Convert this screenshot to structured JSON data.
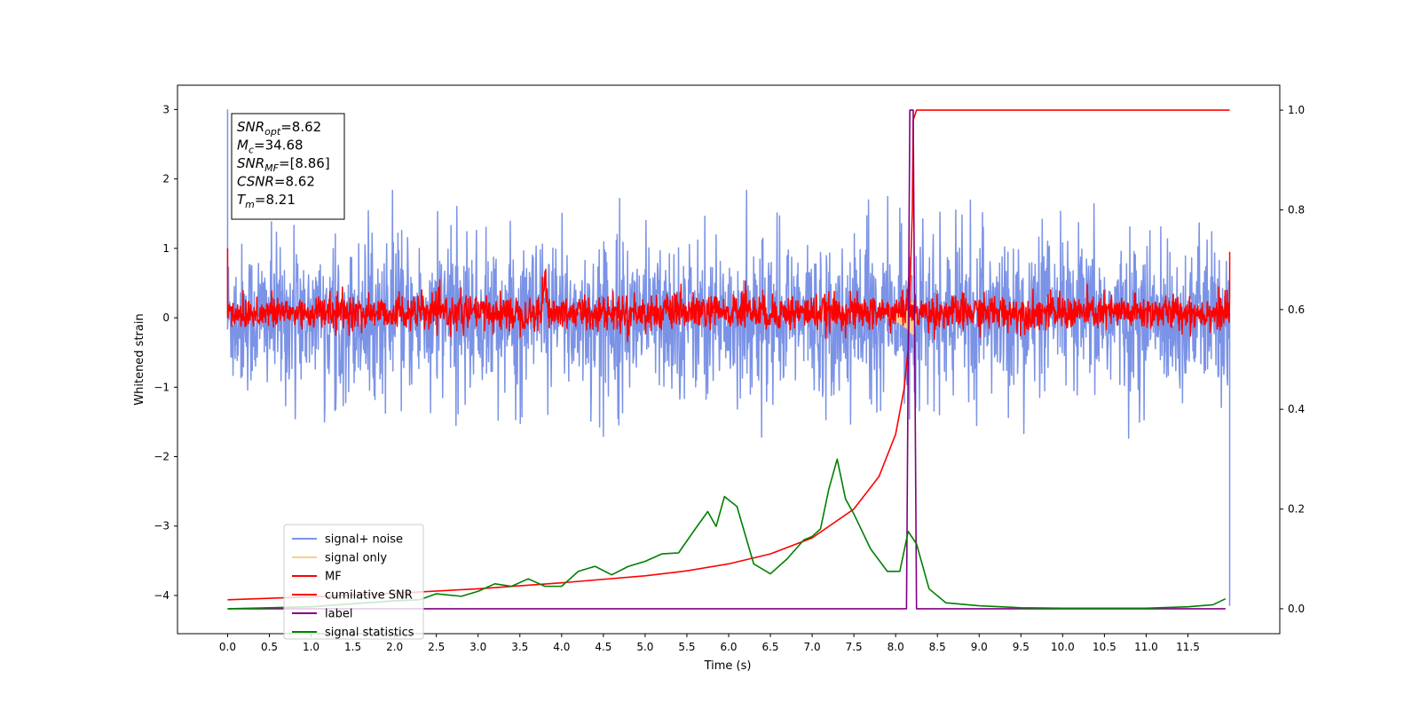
{
  "chart_data": {
    "type": "line",
    "xlabel": "Time (s)",
    "ylabel": "Whitened strain",
    "xlim": [
      -0.6,
      12.6
    ],
    "ylim_left": [
      -4.55,
      3.35
    ],
    "ylim_right": [
      -0.05,
      1.05
    ],
    "x_ticks": [
      "0.0",
      "0.5",
      "1.0",
      "1.5",
      "2.0",
      "2.5",
      "3.0",
      "3.5",
      "4.0",
      "4.5",
      "5.0",
      "5.5",
      "6.0",
      "6.5",
      "7.0",
      "7.5",
      "8.0",
      "8.5",
      "9.0",
      "9.5",
      "10.0",
      "10.5",
      "11.0",
      "11.5"
    ],
    "y_ticks_left": [
      "3",
      "2",
      "1",
      "0",
      "−1",
      "−2",
      "−3",
      "−4"
    ],
    "y_ticks_right": [
      "1.0",
      "0.8",
      "0.6",
      "0.4",
      "0.2",
      "0.0"
    ],
    "grid": false,
    "legend_position": "lower-left",
    "annotation": [
      {
        "name": "SNR",
        "sub": "opt",
        "value": "=8.62"
      },
      {
        "name": "M",
        "sub": "c",
        "value": "=34.68"
      },
      {
        "name": "SNR",
        "sub": "MF",
        "value": "=[8.86]"
      },
      {
        "name": "CSNR",
        "sub": "",
        "value": "=8.62"
      },
      {
        "name": "T",
        "sub": "m",
        "value": "=8.21"
      }
    ],
    "series": [
      {
        "name": "signal+ noise",
        "color": "#7b93e6",
        "axis": "left",
        "kind": "noise",
        "x_range": [
          0.0,
          12.0
        ],
        "typical_range": [
          -0.95,
          0.95
        ],
        "extremes": [
          -1.72,
          1.85
        ],
        "edge_spikes": [
          3.0,
          -4.15
        ]
      },
      {
        "name": "signal only",
        "color": "#f7d08a",
        "axis": "left",
        "kind": "chirp",
        "x_range": [
          7.9,
          8.25
        ],
        "peak": 0.3
      },
      {
        "name": "MF",
        "color": "#ff0000",
        "axis": "left",
        "kind": "noise",
        "x_range": [
          0.0,
          12.0
        ],
        "typical_range": [
          -0.15,
          0.3
        ],
        "bumps": [
          {
            "x": 3.8,
            "y": 0.72
          },
          {
            "x": 6.2,
            "y": 0.35
          },
          {
            "x": 8.15,
            "y": 0.42
          }
        ],
        "edge_values": [
          1.0,
          0.95
        ]
      },
      {
        "name": "cumilative SNR",
        "color": "#ff0000",
        "axis": "right",
        "x": [
          0.0,
          1.0,
          2.0,
          3.0,
          4.0,
          5.0,
          5.5,
          6.0,
          6.5,
          7.0,
          7.5,
          7.8,
          8.0,
          8.1,
          8.15,
          8.2,
          8.21,
          8.25,
          12.0
        ],
        "y": [
          0.018,
          0.024,
          0.031,
          0.04,
          0.052,
          0.066,
          0.076,
          0.09,
          0.11,
          0.142,
          0.2,
          0.265,
          0.35,
          0.44,
          0.52,
          0.8,
          0.98,
          1.0,
          1.0
        ]
      },
      {
        "name": "label",
        "color": "#800080",
        "axis": "right",
        "x": [
          0.0,
          8.13,
          8.17,
          8.21,
          8.25,
          11.95
        ],
        "y": [
          0.0,
          0.0,
          1.0,
          1.0,
          0.0,
          0.0
        ]
      },
      {
        "name": "signal statistics",
        "color": "#008000",
        "axis": "right",
        "x": [
          0.0,
          0.5,
          1.0,
          1.5,
          2.0,
          2.3,
          2.5,
          2.8,
          3.0,
          3.2,
          3.4,
          3.6,
          3.8,
          4.0,
          4.2,
          4.4,
          4.6,
          4.8,
          5.0,
          5.2,
          5.4,
          5.6,
          5.75,
          5.85,
          5.95,
          6.1,
          6.3,
          6.5,
          6.7,
          6.9,
          7.0,
          7.1,
          7.2,
          7.3,
          7.4,
          7.5,
          7.7,
          7.9,
          8.05,
          8.15,
          8.25,
          8.4,
          8.6,
          9.0,
          9.5,
          10.0,
          10.5,
          11.0,
          11.5,
          11.8,
          11.95
        ],
        "y": [
          0.0,
          0.002,
          0.004,
          0.01,
          0.016,
          0.018,
          0.03,
          0.025,
          0.035,
          0.05,
          0.045,
          0.06,
          0.045,
          0.045,
          0.075,
          0.085,
          0.068,
          0.085,
          0.095,
          0.11,
          0.112,
          0.16,
          0.195,
          0.165,
          0.225,
          0.205,
          0.09,
          0.07,
          0.1,
          0.138,
          0.145,
          0.16,
          0.24,
          0.3,
          0.22,
          0.19,
          0.12,
          0.075,
          0.075,
          0.155,
          0.13,
          0.04,
          0.012,
          0.006,
          0.002,
          0.001,
          0.001,
          0.001,
          0.004,
          0.008,
          0.02
        ]
      }
    ]
  }
}
